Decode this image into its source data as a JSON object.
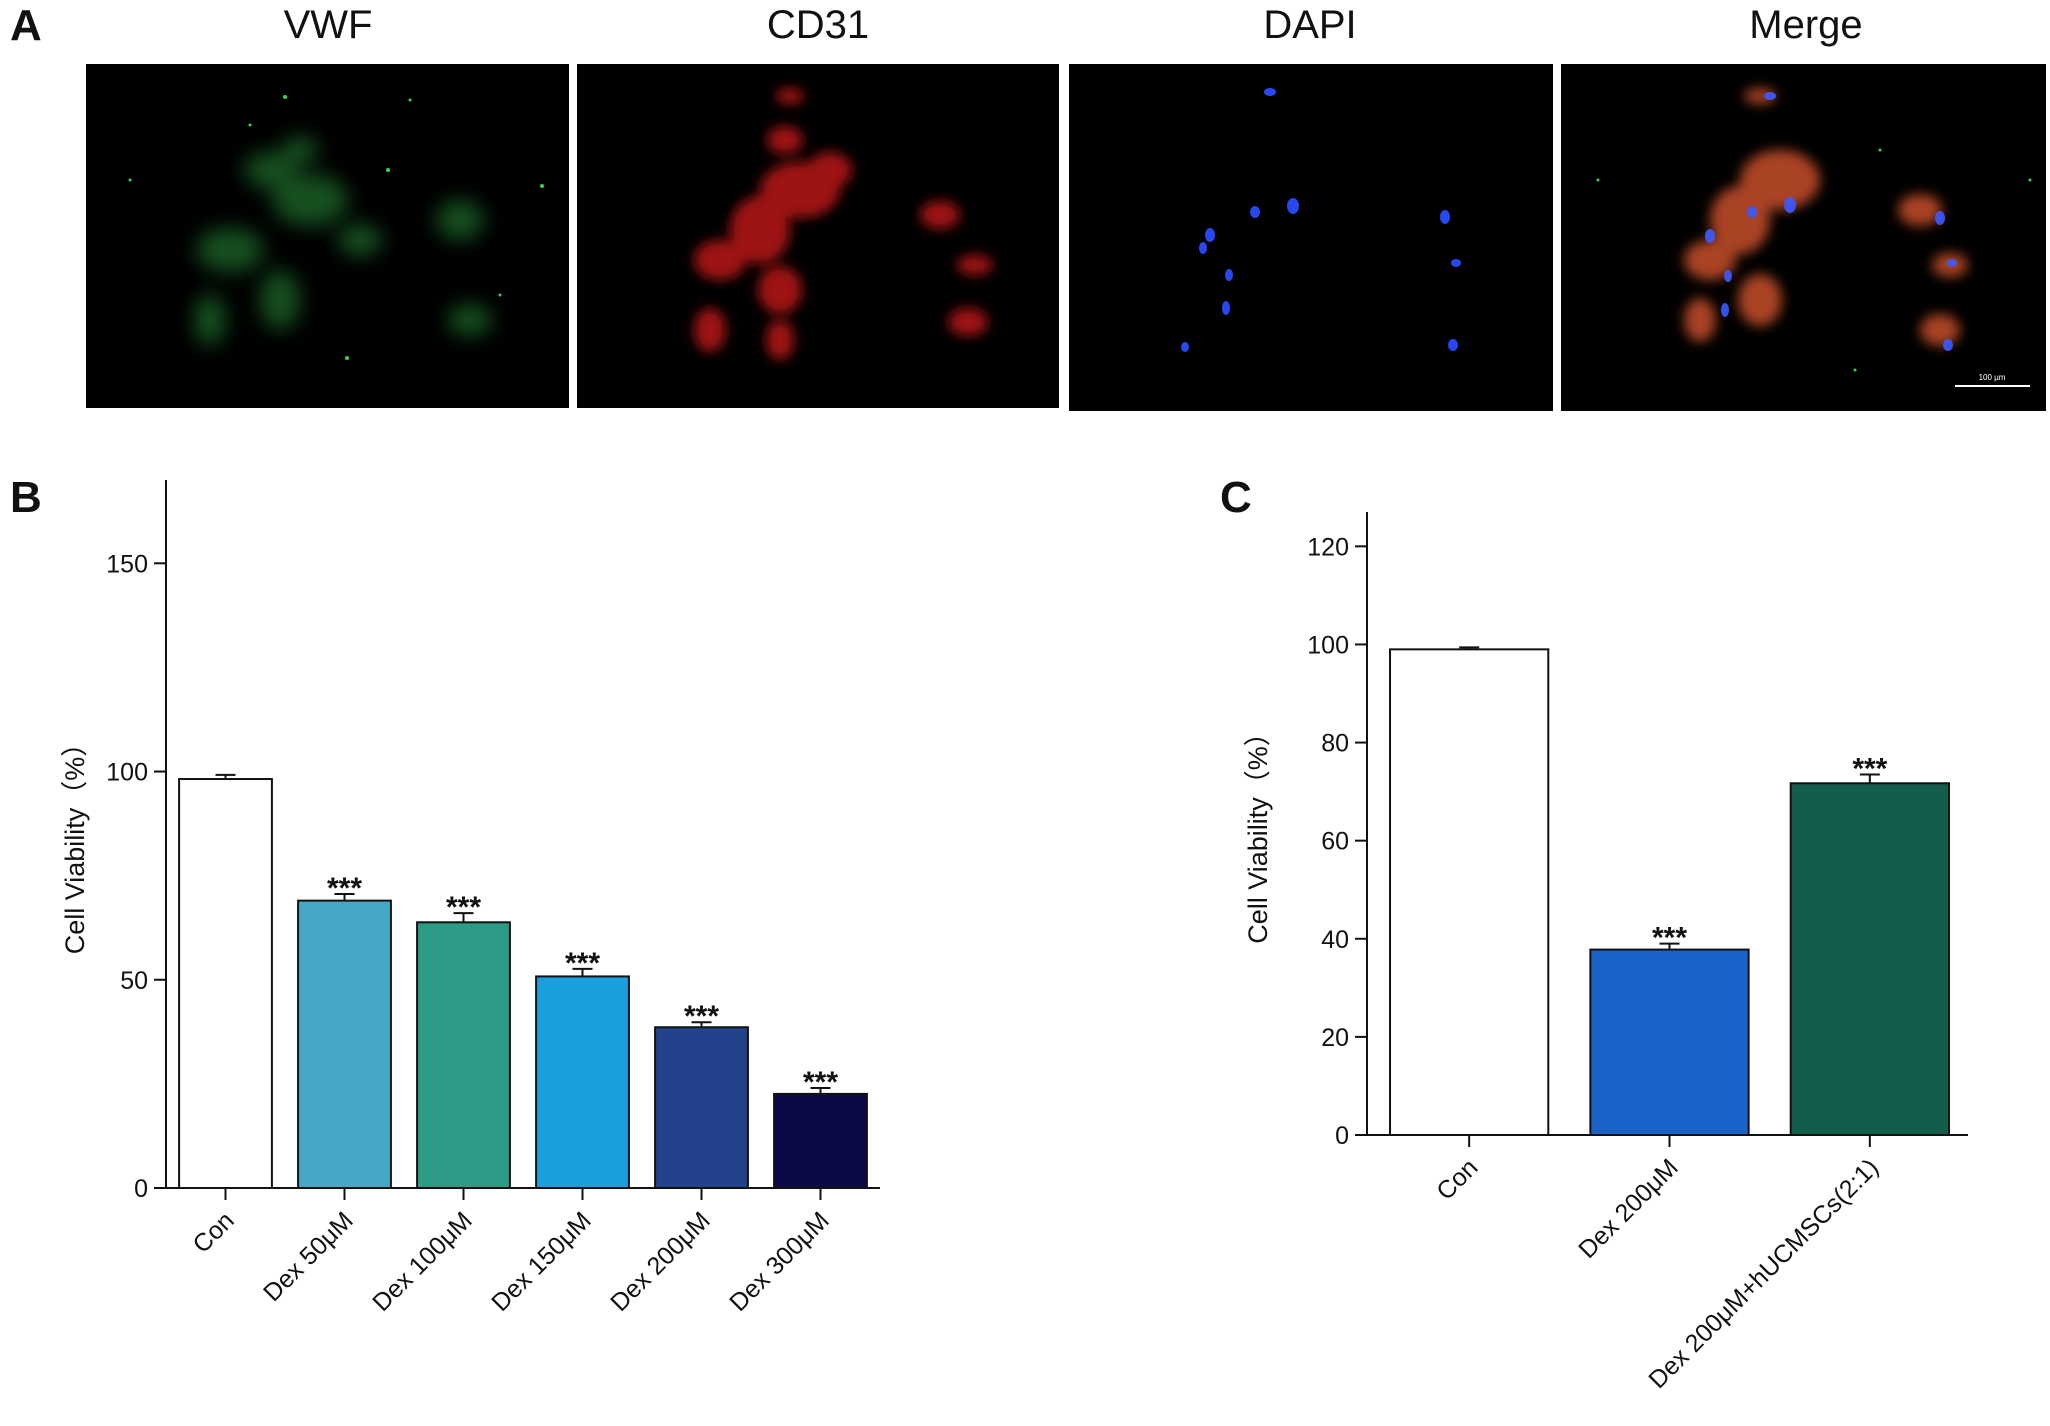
{
  "panels": {
    "a": "A",
    "b": "B",
    "c": "C"
  },
  "micrographs": {
    "titles": [
      "VWF",
      "CD31",
      "DAPI",
      "Merge"
    ],
    "scale_bar_label": "100 μm",
    "channel_colors": {
      "vwf": "#2f8f3a",
      "cd31": "#c41c1c",
      "dapi": "#1d3fe0",
      "merge_cytoplasm": "#c8502a"
    }
  },
  "chart_data": [
    {
      "panel": "B",
      "type": "bar",
      "categories": [
        "Con",
        "Dex 50μM",
        "Dex 100μM",
        "Dex 150μM",
        "Dex 200μM",
        "Dex 300μM"
      ],
      "values": [
        98.2,
        69.0,
        63.8,
        50.8,
        38.6,
        22.6
      ],
      "errors": [
        1.0,
        1.6,
        2.2,
        1.8,
        1.2,
        1.4
      ],
      "significance": [
        "",
        "***",
        "***",
        "***",
        "***",
        "***"
      ],
      "colors": [
        "#ffffff",
        "#45a9c6",
        "#2e9b86",
        "#1a9fdf",
        "#22438c",
        "#0c0a45"
      ],
      "ylabel": "Cell Viability（%）",
      "ylim": [
        0,
        170
      ],
      "yticks": [
        0,
        50,
        100,
        150
      ],
      "grid": false
    },
    {
      "panel": "C",
      "type": "bar",
      "categories": [
        "Con",
        "Dex 200μM",
        "Dex 200μM+hUCMSCs(2:1)"
      ],
      "values": [
        99.0,
        37.8,
        71.7
      ],
      "errors": [
        0.4,
        1.2,
        1.8
      ],
      "significance": [
        "",
        "***",
        "***"
      ],
      "colors": [
        "#ffffff",
        "#1a62c8",
        "#135d4c"
      ],
      "ylabel": "Cell Viability（%）",
      "ylim": [
        0,
        127
      ],
      "yticks": [
        0,
        20,
        40,
        60,
        80,
        100,
        120
      ],
      "grid": false
    }
  ]
}
